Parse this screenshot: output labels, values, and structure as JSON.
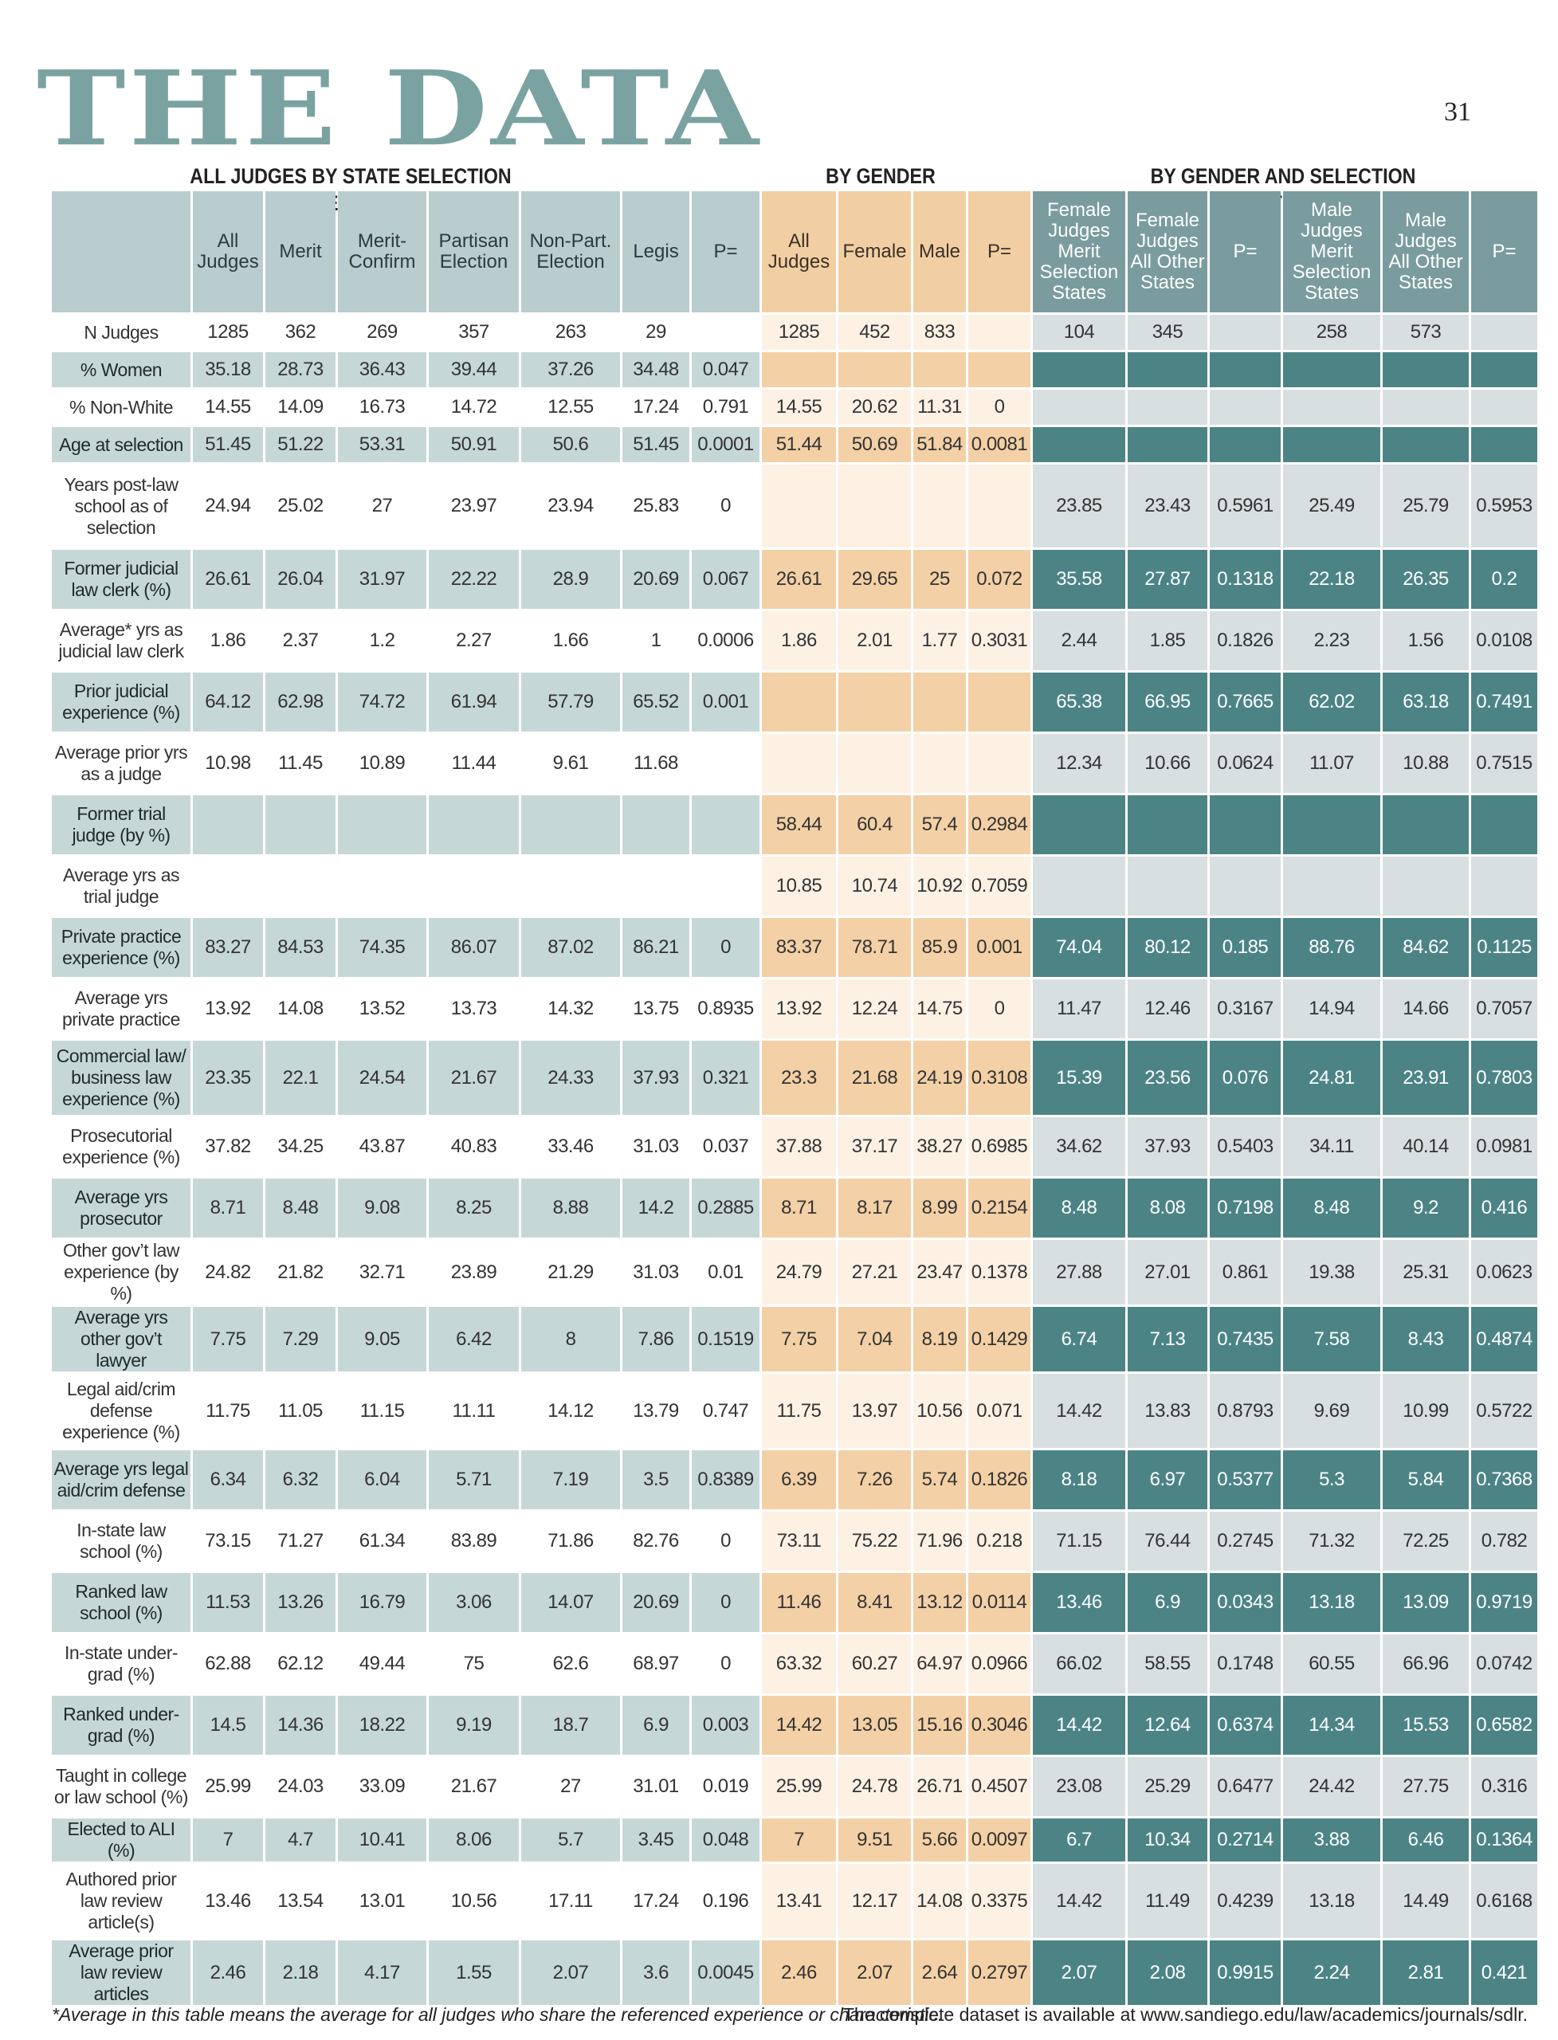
{
  "header": {
    "title": "THE DATA",
    "page_number": "31",
    "section_all": "ALL JUDGES BY STATE SELECTION METHOD",
    "section_gender": "BY GENDER",
    "section_gender_method": "BY GENDER AND SELECTION METHOD"
  },
  "columns": {
    "all": [
      "All Judges",
      "Merit",
      "Merit-Confirm",
      "Partisan Election",
      "Non-Part. Election",
      "Legis",
      "P="
    ],
    "gender": [
      "All Judges",
      "Female",
      "Male",
      "P="
    ],
    "gender_method": [
      "Female Judges Merit Selection States",
      "Female Judges All Other States",
      "P=",
      "Male Judges Merit Selection States",
      "Male Judges All Other States",
      "P="
    ]
  },
  "rows": [
    {
      "label": "N Judges",
      "tone": "light",
      "all": [
        "1285",
        "362",
        "269",
        "357",
        "263",
        "29",
        ""
      ],
      "gender": [
        "1285",
        "452",
        "833",
        ""
      ],
      "gm": [
        "104",
        "345",
        "",
        "258",
        "573",
        ""
      ]
    },
    {
      "label": "% Women",
      "tone": "dark",
      "all": [
        "35.18",
        "28.73",
        "36.43",
        "39.44",
        "37.26",
        "34.48",
        "0.047"
      ],
      "gender": [
        "",
        "",
        "",
        ""
      ],
      "gm": [
        "",
        "",
        "",
        "",
        "",
        ""
      ]
    },
    {
      "label": "% Non-White",
      "tone": "light",
      "all": [
        "14.55",
        "14.09",
        "16.73",
        "14.72",
        "12.55",
        "17.24",
        "0.791"
      ],
      "gender": [
        "14.55",
        "20.62",
        "11.31",
        "0"
      ],
      "gm": [
        "",
        "",
        "",
        "",
        "",
        ""
      ]
    },
    {
      "label": "Age at selection",
      "tone": "dark",
      "all": [
        "51.45",
        "51.22",
        "53.31",
        "50.91",
        "50.6",
        "51.45",
        "0.0001"
      ],
      "gender": [
        "51.44",
        "50.69",
        "51.84",
        "0.0081"
      ],
      "gm": [
        "",
        "",
        "",
        "",
        "",
        ""
      ]
    },
    {
      "label": "Years post-law school as of selection",
      "tone": "light",
      "all": [
        "24.94",
        "25.02",
        "27",
        "23.97",
        "23.94",
        "25.83",
        "0"
      ],
      "gender": [
        "",
        "",
        "",
        ""
      ],
      "gm": [
        "23.85",
        "23.43",
        "0.5961",
        "25.49",
        "25.79",
        "0.5953"
      ]
    },
    {
      "label": "Former judicial law clerk (%)",
      "tone": "dark",
      "all": [
        "26.61",
        "26.04",
        "31.97",
        "22.22",
        "28.9",
        "20.69",
        "0.067"
      ],
      "gender": [
        "26.61",
        "29.65",
        "25",
        "0.072"
      ],
      "gm": [
        "35.58",
        "27.87",
        "0.1318",
        "22.18",
        "26.35",
        "0.2"
      ]
    },
    {
      "label": "Average* yrs as judicial law clerk",
      "tone": "light",
      "all": [
        "1.86",
        "2.37",
        "1.2",
        "2.27",
        "1.66",
        "1",
        "0.0006"
      ],
      "gender": [
        "1.86",
        "2.01",
        "1.77",
        "0.3031"
      ],
      "gm": [
        "2.44",
        "1.85",
        "0.1826",
        "2.23",
        "1.56",
        "0.0108"
      ]
    },
    {
      "label": "Prior judicial experience (%)",
      "tone": "dark",
      "all": [
        "64.12",
        "62.98",
        "74.72",
        "61.94",
        "57.79",
        "65.52",
        "0.001"
      ],
      "gender": [
        "",
        "",
        "",
        ""
      ],
      "gm": [
        "65.38",
        "66.95",
        "0.7665",
        "62.02",
        "63.18",
        "0.7491"
      ]
    },
    {
      "label": "Average prior yrs as a judge",
      "tone": "light",
      "all": [
        "10.98",
        "11.45",
        "10.89",
        "11.44",
        "9.61",
        "11.68",
        ""
      ],
      "gender": [
        "",
        "",
        "",
        ""
      ],
      "gm": [
        "12.34",
        "10.66",
        "0.0624",
        "11.07",
        "10.88",
        "0.7515"
      ]
    },
    {
      "label": "Former trial judge (by %)",
      "tone": "dark",
      "all": [
        "",
        "",
        "",
        "",
        "",
        "",
        ""
      ],
      "gender": [
        "58.44",
        "60.4",
        "57.4",
        "0.2984"
      ],
      "gm": [
        "",
        "",
        "",
        "",
        "",
        ""
      ]
    },
    {
      "label": "Average yrs as trial judge",
      "tone": "light",
      "all": [
        "",
        "",
        "",
        "",
        "",
        "",
        ""
      ],
      "gender": [
        "10.85",
        "10.74",
        "10.92",
        "0.7059"
      ],
      "gm": [
        "",
        "",
        "",
        "",
        "",
        ""
      ]
    },
    {
      "label": "Private practice experience (%)",
      "tone": "dark",
      "all": [
        "83.27",
        "84.53",
        "74.35",
        "86.07",
        "87.02",
        "86.21",
        "0"
      ],
      "gender": [
        "83.37",
        "78.71",
        "85.9",
        "0.001"
      ],
      "gm": [
        "74.04",
        "80.12",
        "0.185",
        "88.76",
        "84.62",
        "0.1125"
      ]
    },
    {
      "label": "Average yrs private practice",
      "tone": "light",
      "all": [
        "13.92",
        "14.08",
        "13.52",
        "13.73",
        "14.32",
        "13.75",
        "0.8935"
      ],
      "gender": [
        "13.92",
        "12.24",
        "14.75",
        "0"
      ],
      "gm": [
        "11.47",
        "12.46",
        "0.3167",
        "14.94",
        "14.66",
        "0.7057"
      ]
    },
    {
      "label": "Commercial law/ business law experience (%)",
      "tone": "dark",
      "all": [
        "23.35",
        "22.1",
        "24.54",
        "21.67",
        "24.33",
        "37.93",
        "0.321"
      ],
      "gender": [
        "23.3",
        "21.68",
        "24.19",
        "0.3108"
      ],
      "gm": [
        "15.39",
        "23.56",
        "0.076",
        "24.81",
        "23.91",
        "0.7803"
      ]
    },
    {
      "label": "Prosecutorial experience (%)",
      "tone": "light",
      "all": [
        "37.82",
        "34.25",
        "43.87",
        "40.83",
        "33.46",
        "31.03",
        "0.037"
      ],
      "gender": [
        "37.88",
        "37.17",
        "38.27",
        "0.6985"
      ],
      "gm": [
        "34.62",
        "37.93",
        "0.5403",
        "34.11",
        "40.14",
        "0.0981"
      ]
    },
    {
      "label": "Average yrs prosecutor",
      "tone": "dark",
      "all": [
        "8.71",
        "8.48",
        "9.08",
        "8.25",
        "8.88",
        "14.2",
        "0.2885"
      ],
      "gender": [
        "8.71",
        "8.17",
        "8.99",
        "0.2154"
      ],
      "gm": [
        "8.48",
        "8.08",
        "0.7198",
        "8.48",
        "9.2",
        "0.416"
      ]
    },
    {
      "label": "Other gov’t law experience (by %)",
      "tone": "light",
      "all": [
        "24.82",
        "21.82",
        "32.71",
        "23.89",
        "21.29",
        "31.03",
        "0.01"
      ],
      "gender": [
        "24.79",
        "27.21",
        "23.47",
        "0.1378"
      ],
      "gm": [
        "27.88",
        "27.01",
        "0.861",
        "19.38",
        "25.31",
        "0.0623"
      ]
    },
    {
      "label": "Average yrs other gov’t lawyer",
      "tone": "dark",
      "all": [
        "7.75",
        "7.29",
        "9.05",
        "6.42",
        "8",
        "7.86",
        "0.1519"
      ],
      "gender": [
        "7.75",
        "7.04",
        "8.19",
        "0.1429"
      ],
      "gm": [
        "6.74",
        "7.13",
        "0.7435",
        "7.58",
        "8.43",
        "0.4874"
      ]
    },
    {
      "label": "Legal aid/crim defense experience (%)",
      "tone": "light",
      "all": [
        "11.75",
        "11.05",
        "11.15",
        "11.11",
        "14.12",
        "13.79",
        "0.747"
      ],
      "gender": [
        "11.75",
        "13.97",
        "10.56",
        "0.071"
      ],
      "gm": [
        "14.42",
        "13.83",
        "0.8793",
        "9.69",
        "10.99",
        "0.5722"
      ]
    },
    {
      "label": "Average yrs legal aid/crim defense",
      "tone": "dark",
      "all": [
        "6.34",
        "6.32",
        "6.04",
        "5.71",
        "7.19",
        "3.5",
        "0.8389"
      ],
      "gender": [
        "6.39",
        "7.26",
        "5.74",
        "0.1826"
      ],
      "gm": [
        "8.18",
        "6.97",
        "0.5377",
        "5.3",
        "5.84",
        "0.7368"
      ]
    },
    {
      "label": "In-state law school (%)",
      "tone": "light",
      "all": [
        "73.15",
        "71.27",
        "61.34",
        "83.89",
        "71.86",
        "82.76",
        "0"
      ],
      "gender": [
        "73.11",
        "75.22",
        "71.96",
        "0.218"
      ],
      "gm": [
        "71.15",
        "76.44",
        "0.2745",
        "71.32",
        "72.25",
        "0.782"
      ]
    },
    {
      "label": "Ranked law school (%)",
      "tone": "dark",
      "all": [
        "11.53",
        "13.26",
        "16.79",
        "3.06",
        "14.07",
        "20.69",
        "0"
      ],
      "gender": [
        "11.46",
        "8.41",
        "13.12",
        "0.0114"
      ],
      "gm": [
        "13.46",
        "6.9",
        "0.0343",
        "13.18",
        "13.09",
        "0.9719"
      ]
    },
    {
      "label": "In-state under-grad (%)",
      "tone": "light",
      "all": [
        "62.88",
        "62.12",
        "49.44",
        "75",
        "62.6",
        "68.97",
        "0"
      ],
      "gender": [
        "63.32",
        "60.27",
        "64.97",
        "0.0966"
      ],
      "gm": [
        "66.02",
        "58.55",
        "0.1748",
        "60.55",
        "66.96",
        "0.0742"
      ]
    },
    {
      "label": "Ranked under-grad (%)",
      "tone": "dark",
      "all": [
        "14.5",
        "14.36",
        "18.22",
        "9.19",
        "18.7",
        "6.9",
        "0.003"
      ],
      "gender": [
        "14.42",
        "13.05",
        "15.16",
        "0.3046"
      ],
      "gm": [
        "14.42",
        "12.64",
        "0.6374",
        "14.34",
        "15.53",
        "0.6582"
      ]
    },
    {
      "label": "Taught in college or law school (%)",
      "tone": "light",
      "all": [
        "25.99",
        "24.03",
        "33.09",
        "21.67",
        "27",
        "31.01",
        "0.019"
      ],
      "gender": [
        "25.99",
        "24.78",
        "26.71",
        "0.4507"
      ],
      "gm": [
        "23.08",
        "25.29",
        "0.6477",
        "24.42",
        "27.75",
        "0.316"
      ]
    },
    {
      "label": "Elected to ALI (%)",
      "tone": "dark",
      "all": [
        "7",
        "4.7",
        "10.41",
        "8.06",
        "5.7",
        "3.45",
        "0.048"
      ],
      "gender": [
        "7",
        "9.51",
        "5.66",
        "0.0097"
      ],
      "gm": [
        "6.7",
        "10.34",
        "0.2714",
        "3.88",
        "6.46",
        "0.1364"
      ]
    },
    {
      "label": "Authored prior law review article(s)",
      "tone": "light",
      "all": [
        "13.46",
        "13.54",
        "13.01",
        "10.56",
        "17.11",
        "17.24",
        "0.196"
      ],
      "gender": [
        "13.41",
        "12.17",
        "14.08",
        "0.3375"
      ],
      "gm": [
        "14.42",
        "11.49",
        "0.4239",
        "13.18",
        "14.49",
        "0.6168"
      ]
    },
    {
      "label": "Average prior law review articles",
      "tone": "dark",
      "all": [
        "2.46",
        "2.18",
        "4.17",
        "1.55",
        "2.07",
        "3.6",
        "0.0045"
      ],
      "gender": [
        "2.46",
        "2.07",
        "2.64",
        "0.2797"
      ],
      "gm": [
        "2.07",
        "2.08",
        "0.9915",
        "2.24",
        "2.81",
        "0.421"
      ]
    }
  ],
  "footer": {
    "note": "*Average in this table means the average for all judges who share the referenced experience or characteristic.",
    "source": "The complete dataset is available at www.sandiego.edu/law/academics/journals/sdlr."
  },
  "colors": {
    "title": "#7aa2a1",
    "all_header": "#b9ccce",
    "gender_header": "#f2cfa3",
    "gender_method_header": "#7a9c9f",
    "dark_teal": "#4c8486"
  }
}
